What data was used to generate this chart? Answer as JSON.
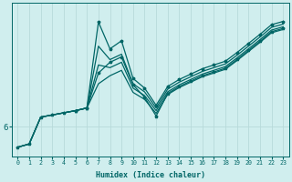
{
  "xlabel": "Humidex (Indice chaleur)",
  "bg_color": "#d0eeee",
  "line_color": "#006666",
  "grid_color": "#b8dada",
  "xlim": [
    -0.5,
    23.5
  ],
  "ylim": [
    5.45,
    8.3
  ],
  "ytick_labels": [
    "6"
  ],
  "ytick_positions": [
    6.0
  ],
  "lines": [
    {
      "x": [
        0,
        1,
        2,
        3,
        4,
        5,
        6,
        7,
        8,
        9,
        10,
        11,
        12,
        13,
        14,
        15,
        16,
        17,
        18,
        19,
        20,
        21,
        22,
        23
      ],
      "y": [
        5.62,
        5.68,
        6.18,
        6.22,
        6.26,
        6.3,
        6.35,
        7.95,
        7.45,
        7.6,
        6.9,
        6.72,
        6.4,
        6.75,
        6.88,
        6.98,
        7.08,
        7.15,
        7.22,
        7.38,
        7.55,
        7.72,
        7.9,
        7.96
      ],
      "marker": true,
      "linewidth": 0.9
    },
    {
      "x": [
        0,
        1,
        2,
        3,
        4,
        5,
        6,
        7,
        8,
        9,
        10,
        11,
        12,
        13,
        14,
        15,
        16,
        17,
        18,
        19,
        20,
        21,
        22,
        23
      ],
      "y": [
        5.62,
        5.68,
        6.18,
        6.22,
        6.26,
        6.3,
        6.35,
        7.5,
        7.25,
        7.35,
        6.8,
        6.65,
        6.35,
        6.7,
        6.83,
        6.93,
        7.03,
        7.1,
        7.17,
        7.33,
        7.5,
        7.67,
        7.85,
        7.91
      ],
      "marker": false,
      "linewidth": 0.9
    },
    {
      "x": [
        0,
        1,
        2,
        3,
        4,
        5,
        6,
        7,
        8,
        9,
        10,
        11,
        12,
        13,
        14,
        15,
        16,
        17,
        18,
        19,
        20,
        21,
        22,
        23
      ],
      "y": [
        5.62,
        5.68,
        6.18,
        6.22,
        6.26,
        6.3,
        6.35,
        7.15,
        7.1,
        7.2,
        6.72,
        6.58,
        6.3,
        6.65,
        6.78,
        6.88,
        6.98,
        7.05,
        7.12,
        7.28,
        7.45,
        7.62,
        7.8,
        7.86
      ],
      "marker": false,
      "linewidth": 0.9
    },
    {
      "x": [
        0,
        1,
        2,
        3,
        4,
        5,
        6,
        7,
        8,
        9,
        10,
        11,
        12,
        13,
        14,
        15,
        16,
        17,
        18,
        19,
        20,
        21,
        22,
        23
      ],
      "y": [
        5.62,
        5.68,
        6.18,
        6.22,
        6.26,
        6.3,
        6.35,
        6.8,
        6.95,
        7.05,
        6.64,
        6.51,
        6.25,
        6.6,
        6.73,
        6.83,
        6.93,
        7.0,
        7.07,
        7.23,
        7.4,
        7.57,
        7.75,
        7.81
      ],
      "marker": false,
      "linewidth": 0.9
    },
    {
      "x": [
        5,
        6,
        7,
        8,
        9,
        10,
        11,
        12,
        13,
        14,
        15,
        16,
        17,
        18,
        19,
        20,
        21,
        22,
        23
      ],
      "y": [
        6.3,
        6.35,
        7.0,
        7.2,
        7.3,
        6.78,
        6.55,
        6.2,
        6.62,
        6.75,
        6.85,
        6.95,
        7.02,
        7.09,
        7.25,
        7.42,
        7.59,
        7.77,
        7.83
      ],
      "marker": true,
      "linewidth": 0.9
    }
  ]
}
